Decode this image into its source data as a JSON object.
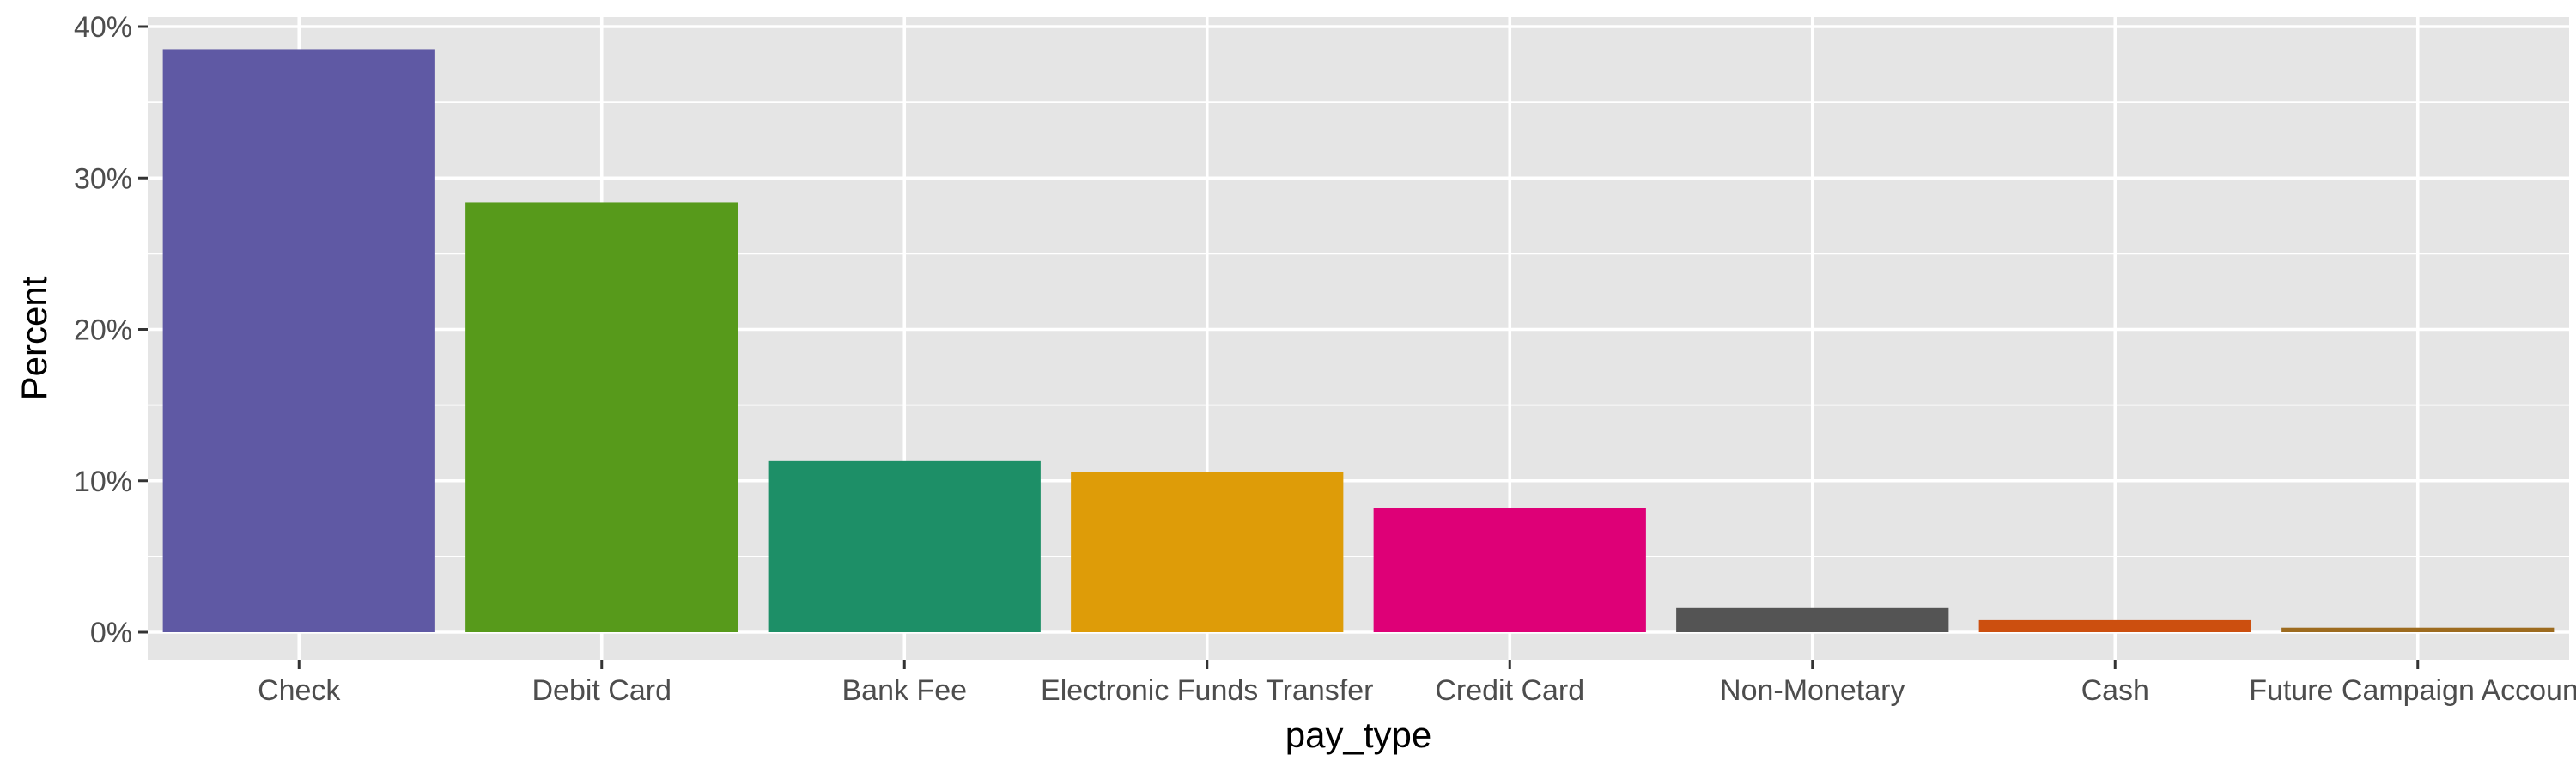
{
  "chart_data": {
    "type": "bar",
    "title": "",
    "xlabel": "pay_type",
    "ylabel": "Percent",
    "categories": [
      "Check",
      "Debit Card",
      "Bank Fee",
      "Electronic Funds Transfer",
      "Credit Card",
      "Non-Monetary",
      "Cash",
      "Future Campaign Account"
    ],
    "values": [
      38.5,
      28.4,
      11.3,
      10.6,
      8.2,
      1.6,
      0.8,
      0.3
    ],
    "colors": [
      "#5f59a4",
      "#579a1b",
      "#1d8f67",
      "#de9c08",
      "#de0077",
      "#545454",
      "#cc4f0f",
      "#9d6b1f"
    ],
    "ylim": [
      0,
      40
    ],
    "yticks": [
      0,
      10,
      20,
      30,
      40
    ],
    "ytick_labels": [
      "0%",
      "10%",
      "20%",
      "30%",
      "40%"
    ],
    "grid": true,
    "legend": "none"
  }
}
